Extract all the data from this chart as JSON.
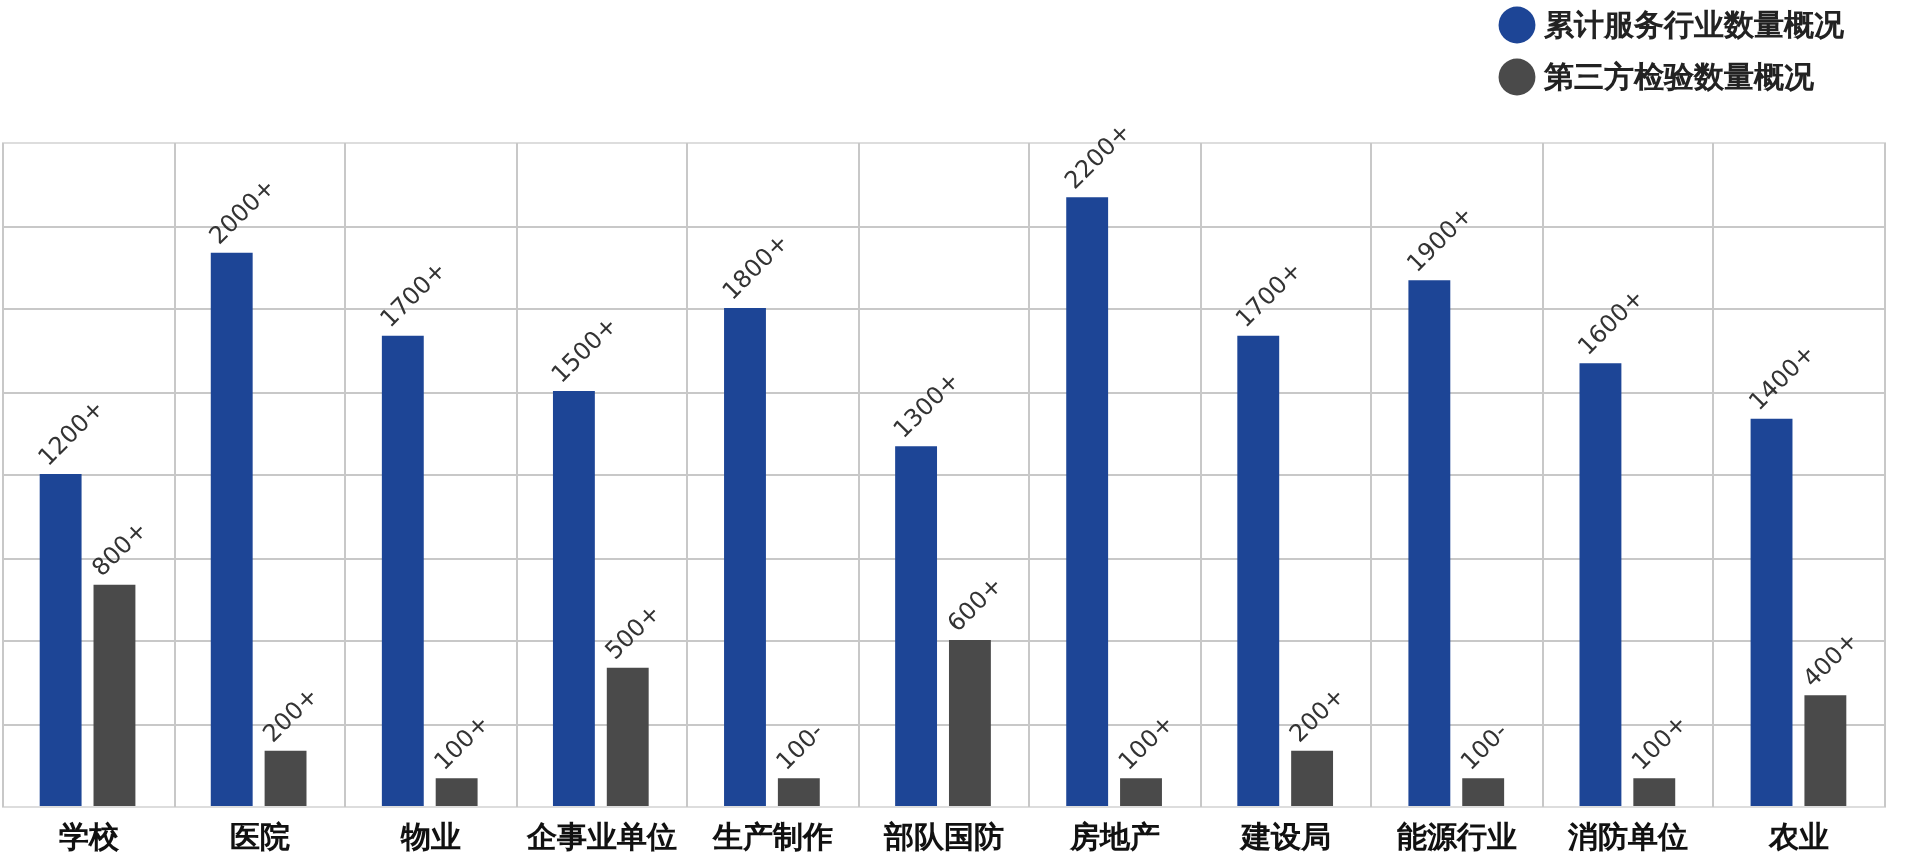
{
  "chart_data": {
    "type": "bar",
    "categories": [
      "学校",
      "医院",
      "物业",
      "企事业单位",
      "生产制作",
      "部队国防",
      "房地产",
      "建设局",
      "能源行业",
      "消防单位",
      "农业"
    ],
    "series": [
      {
        "name": "累计服务行业数量概况",
        "color": "#1d4596",
        "values": [
          1200,
          2000,
          1700,
          1500,
          1800,
          1300,
          2200,
          1700,
          1900,
          1600,
          1400
        ],
        "value_labels": [
          "1200+",
          "2000+",
          "1700+",
          "1500+",
          "1800+",
          "1300+",
          "2200+",
          "1700+",
          "1900+",
          "1600+",
          "1400+"
        ]
      },
      {
        "name": "第三方检验数量概况",
        "color": "#4a4a4a",
        "values": [
          800,
          200,
          100,
          500,
          100,
          600,
          100,
          200,
          100,
          100,
          400
        ],
        "value_labels": [
          "800+",
          "200+",
          "100+",
          "500+",
          "100-",
          "600+",
          "100+",
          "200+",
          "100-",
          "100+",
          "400+"
        ]
      }
    ],
    "ylim": [
      0,
      2400
    ],
    "yticks": [
      {
        "value": 300,
        "label": null
      },
      {
        "value": 600,
        "label": null
      },
      {
        "value": 900,
        "label": null
      },
      {
        "value": 1200,
        "label": null
      },
      {
        "value": 1500,
        "label": null
      },
      {
        "value": 1800,
        "label": null
      },
      {
        "value": 2100,
        "label": null
      }
    ],
    "grid": true,
    "legend": "top right",
    "tick_labels": "x"
  }
}
